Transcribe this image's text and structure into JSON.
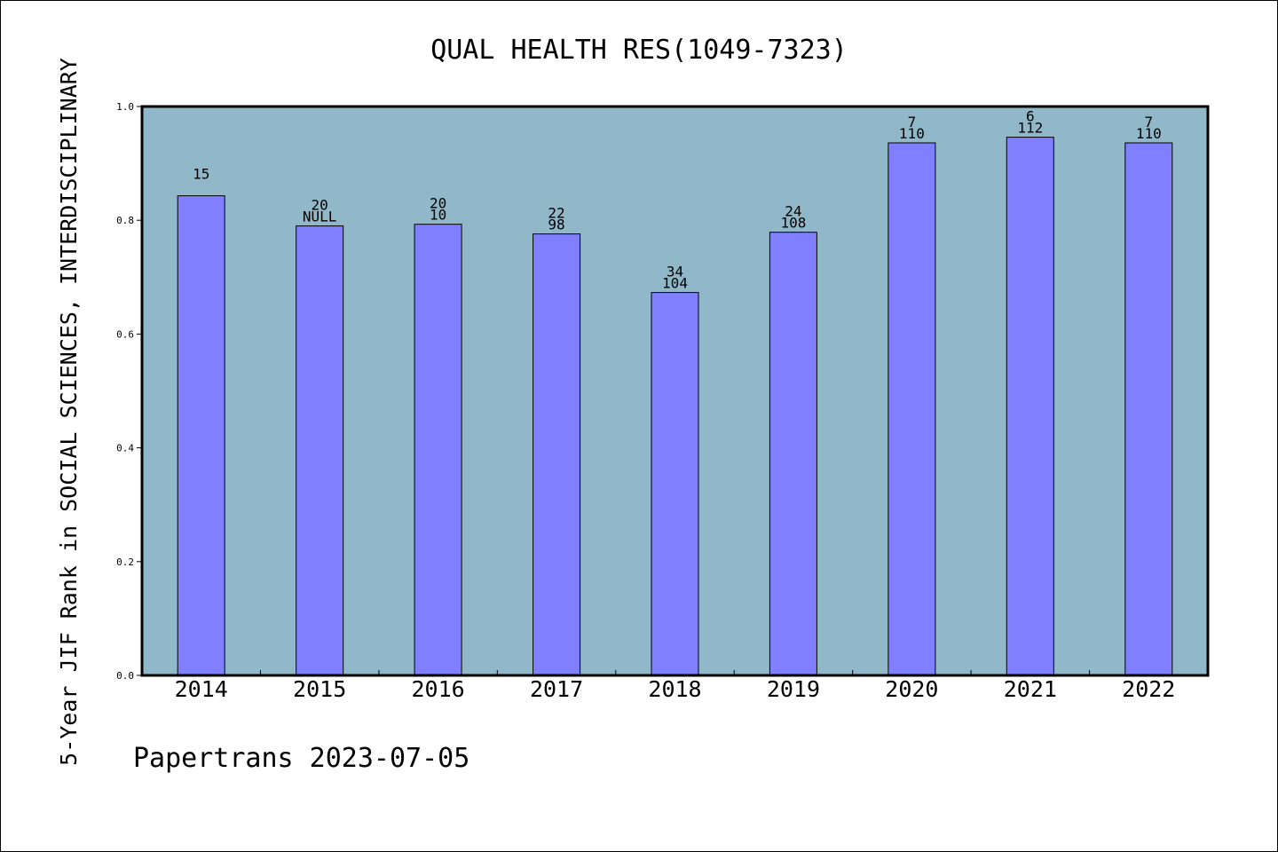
{
  "chart_data": {
    "type": "bar",
    "title": "QUAL HEALTH RES(1049-7323)",
    "ylabel": "5-Year JIF Rank in SOCIAL SCIENCES, INTERDISCIPLINARY",
    "xlabel": "",
    "footer": "Papertrans 2023-07-05",
    "ylim": [
      0,
      1.0
    ],
    "yticks": [
      "0.0",
      "0.2",
      "0.4",
      "0.6",
      "0.8",
      "1.0"
    ],
    "grid": false,
    "categories": [
      "2014",
      "2015",
      "2016",
      "2017",
      "2018",
      "2019",
      "2020",
      "2021",
      "2022"
    ],
    "values": [
      0.843,
      0.79,
      0.793,
      0.776,
      0.673,
      0.779,
      0.936,
      0.946,
      0.936
    ],
    "labels_top": [
      "15",
      "20",
      "20",
      "22",
      "34",
      "24",
      "7",
      "6",
      "7"
    ],
    "labels_bottom": [
      "",
      "NULL",
      "10",
      "98",
      "104",
      "108",
      "110",
      "112",
      "110"
    ],
    "colors": {
      "plot_background": "#91b8c8",
      "bar_fill": "#8080ff",
      "bar_stroke": "#000000"
    }
  }
}
